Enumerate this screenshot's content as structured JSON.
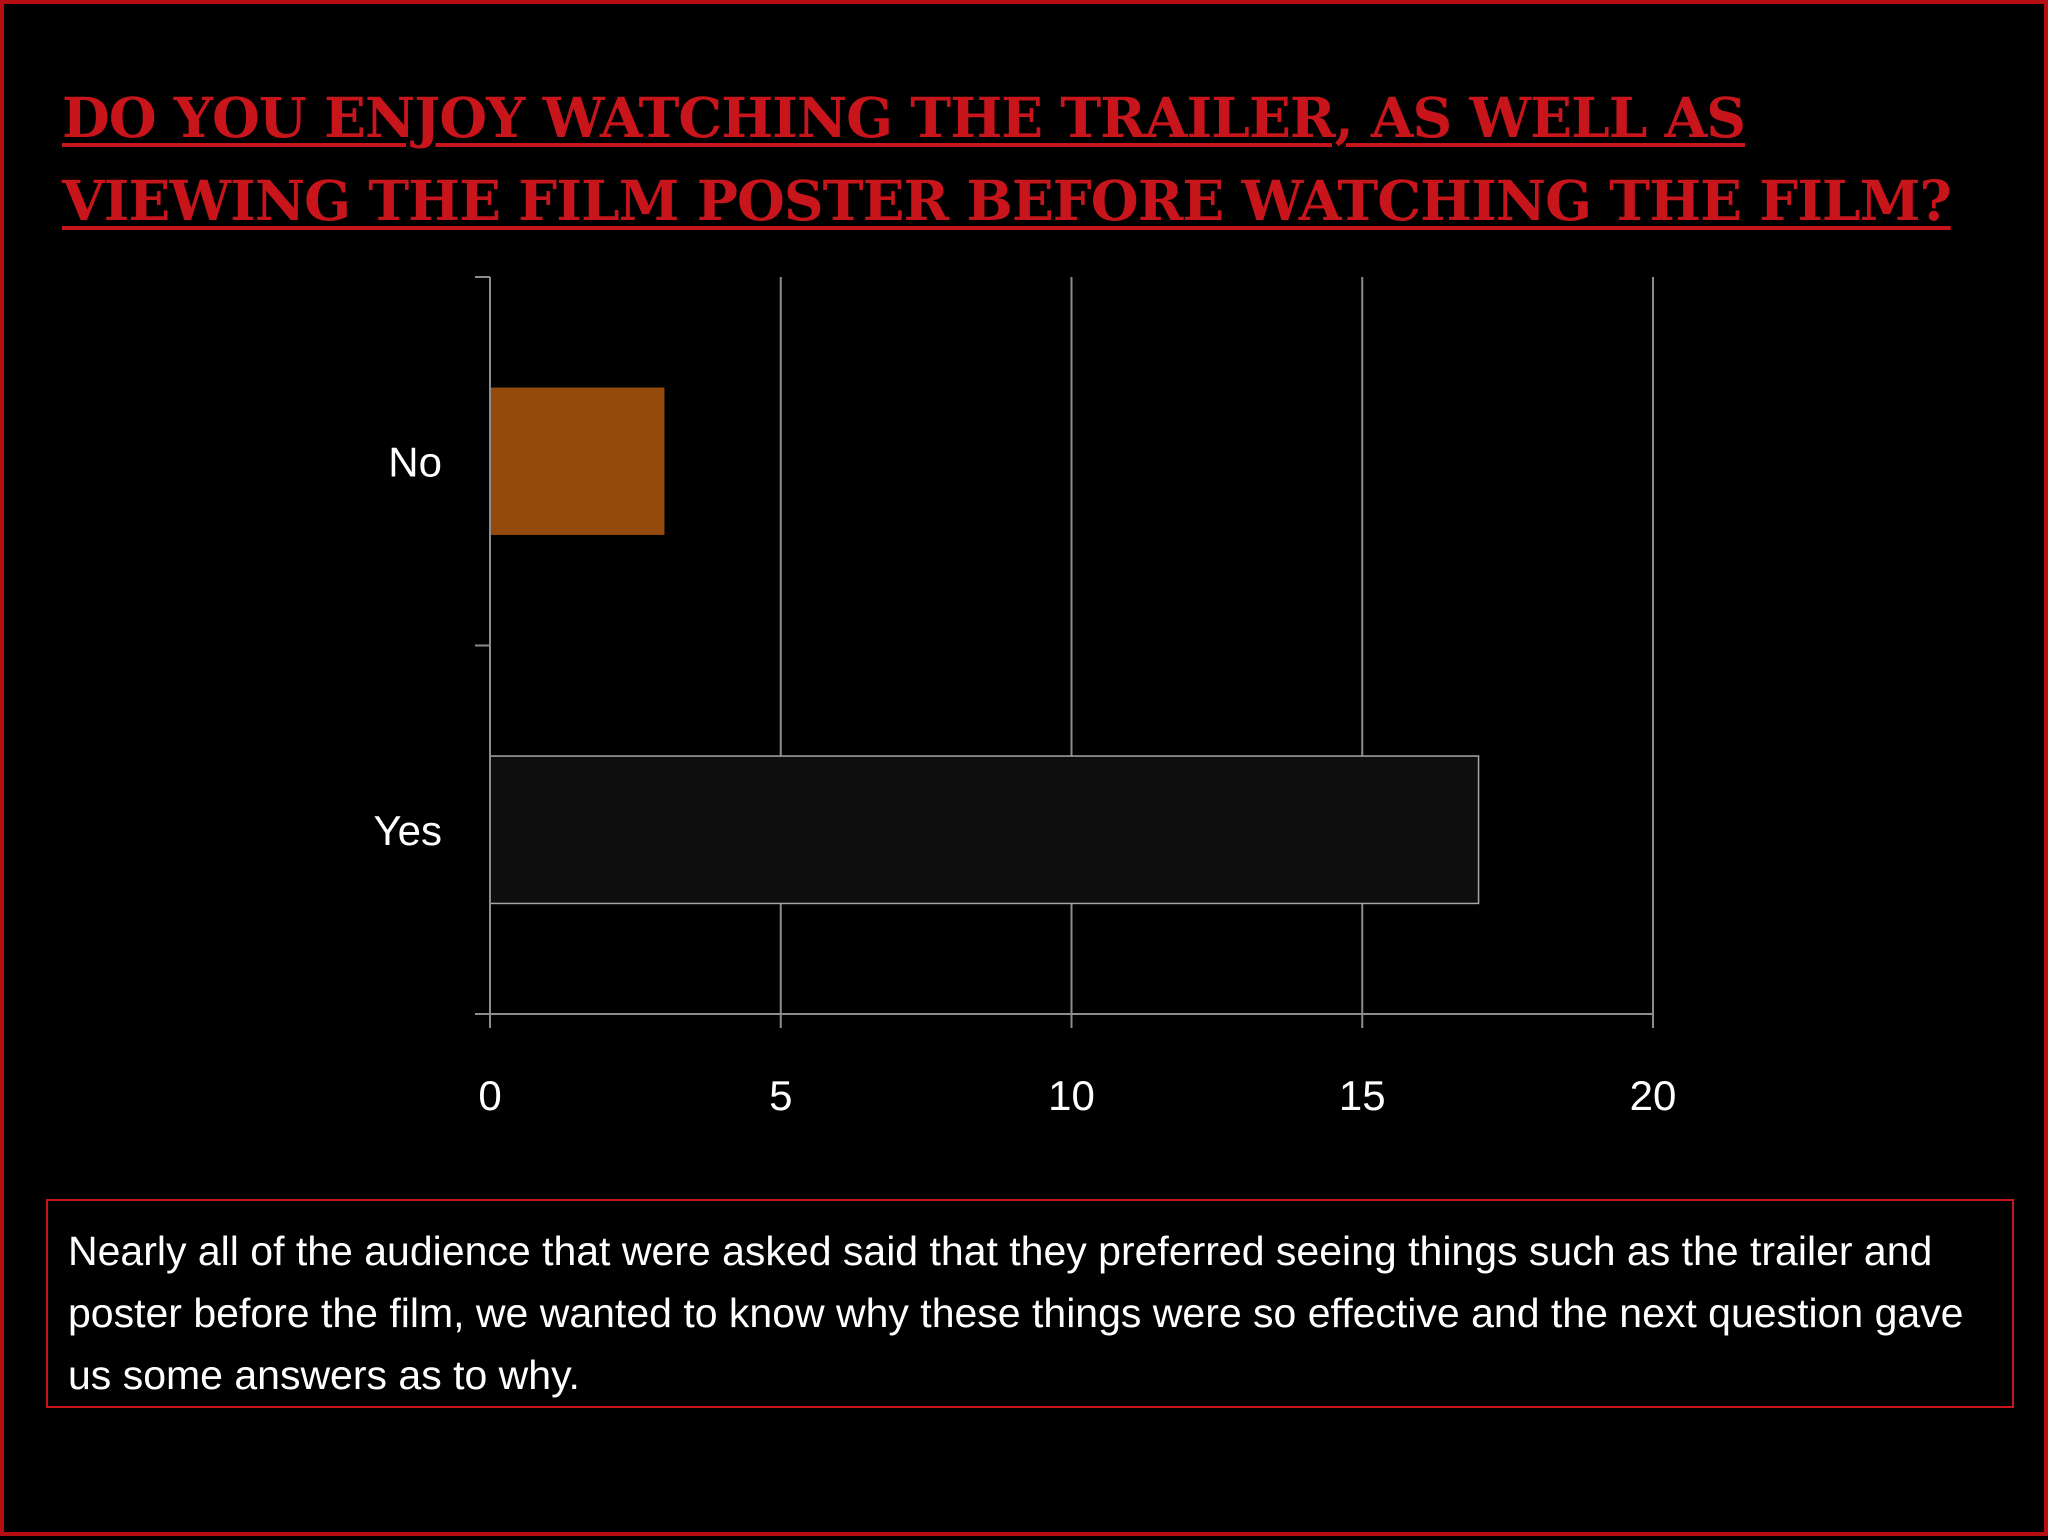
{
  "slide": {
    "title": "Do you enjoy watching the trailer, as well as viewing the film poster before  watching the film?",
    "caption": "Nearly all of the audience that were asked said that they preferred seeing things such as the trailer and poster before the film, we wanted to know why these things were so effective and the next question gave us some answers as to why."
  },
  "colors": {
    "accent_red": "#c8141b",
    "bar_no": "#944a0c",
    "bar_yes": "#0d0e0d",
    "gridline": "#8c8c8c"
  },
  "chart_data": {
    "type": "bar",
    "orientation": "horizontal",
    "categories": [
      "No",
      "Yes"
    ],
    "values": [
      3,
      17
    ],
    "xlim": [
      0,
      20
    ],
    "ticks": [
      0,
      5,
      10,
      15,
      20
    ],
    "tick_labels": [
      "0",
      "5",
      "10",
      "15",
      "20"
    ],
    "grid": true,
    "legend": false,
    "xlabel": "",
    "ylabel": ""
  }
}
